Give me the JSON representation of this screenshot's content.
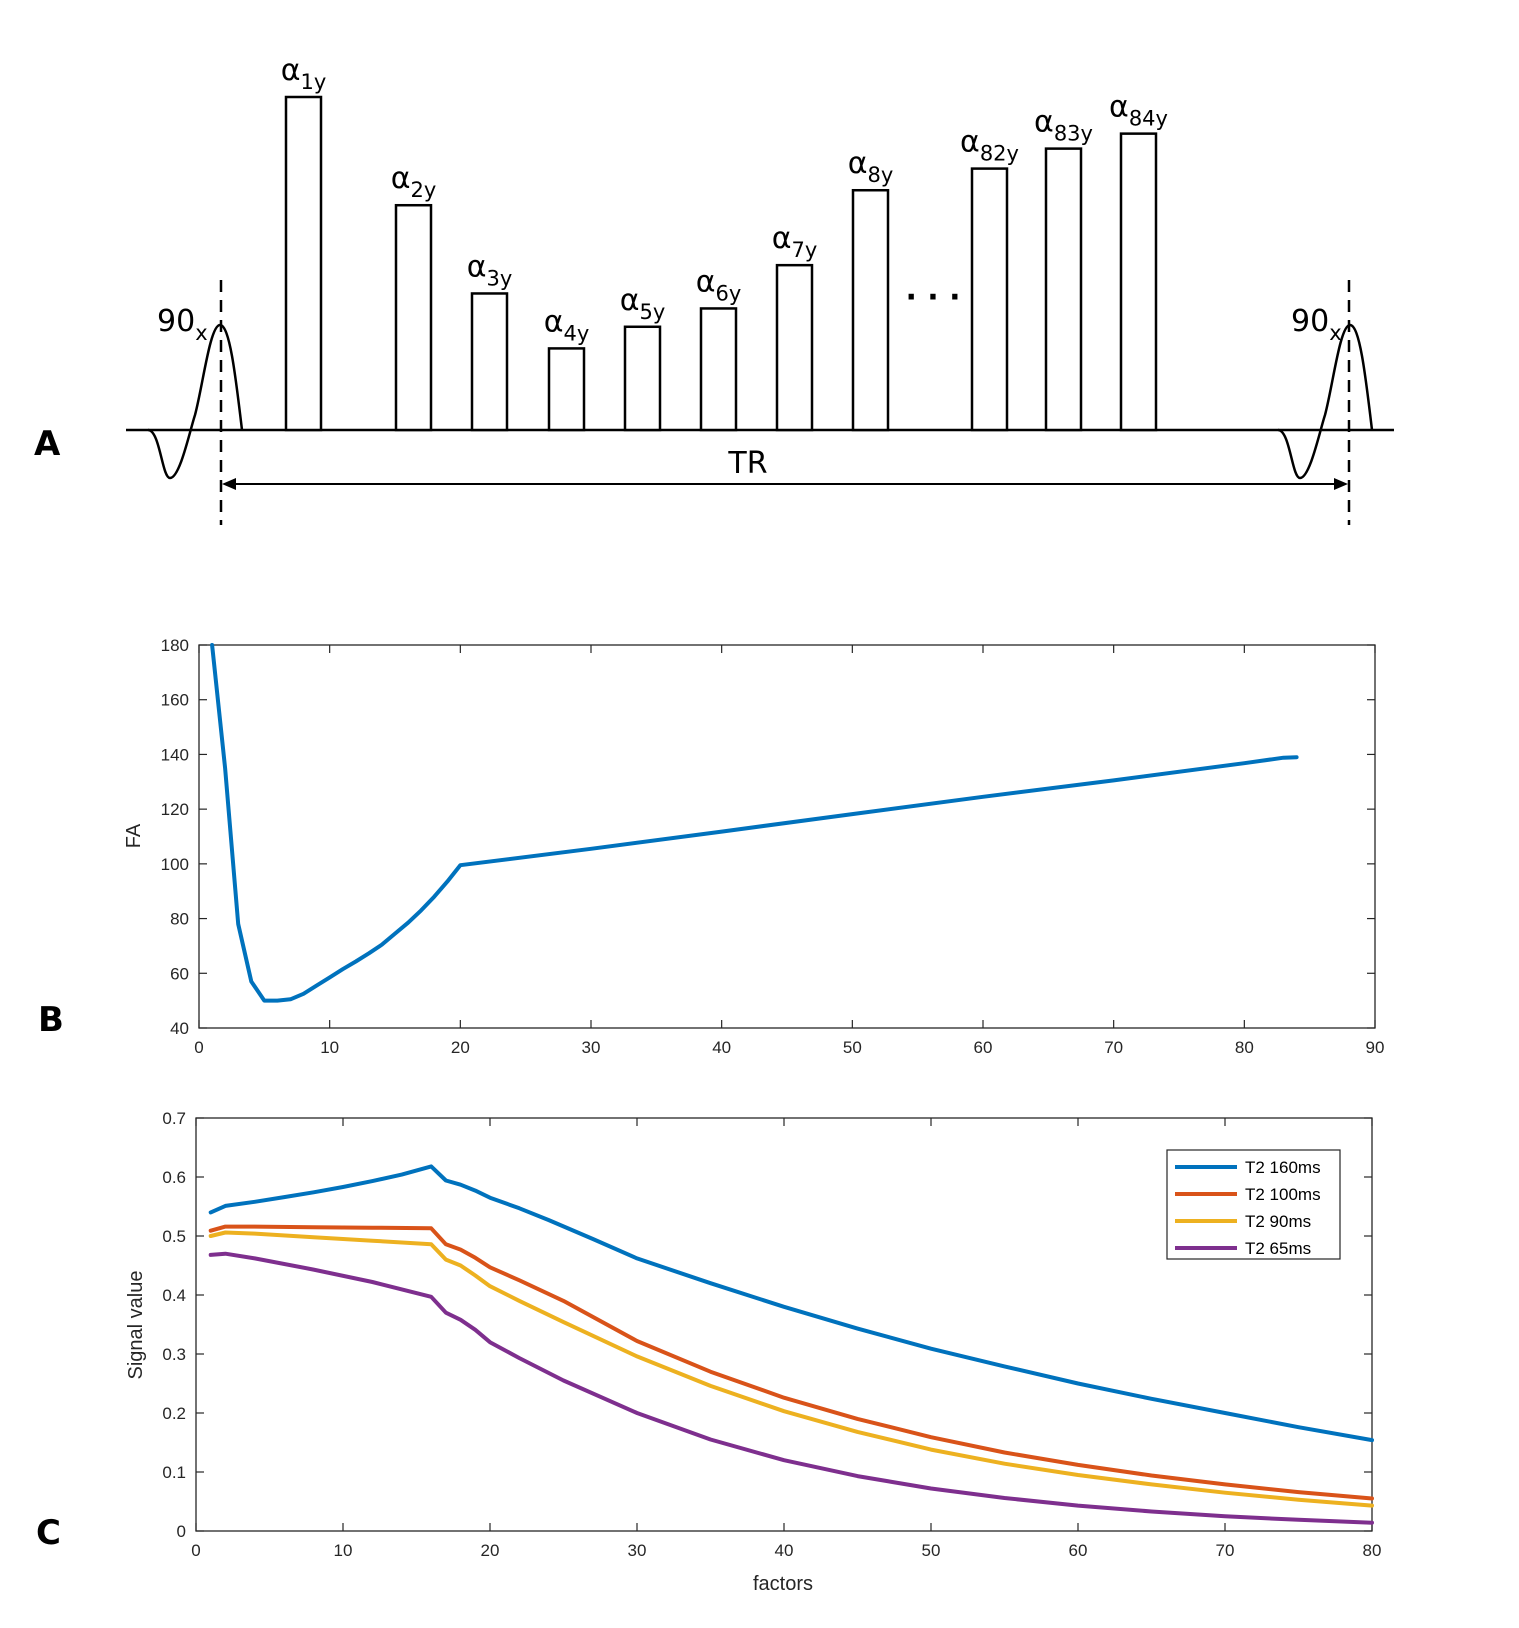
{
  "panel_labels": {
    "a": "A",
    "b": "B",
    "c": "C"
  },
  "panel_a": {
    "excitation_label": "90",
    "excitation_sub": "x",
    "tr_label": "TR",
    "ellipsis": "· · ·",
    "refocus_pulses": [
      {
        "base": "α",
        "sub": "1y",
        "rel_height": 1.0
      },
      {
        "base": "α",
        "sub": "2y",
        "rel_height": 0.675
      },
      {
        "base": "α",
        "sub": "3y",
        "rel_height": 0.41
      },
      {
        "base": "α",
        "sub": "4y",
        "rel_height": 0.245
      },
      {
        "base": "α",
        "sub": "5y",
        "rel_height": 0.31
      },
      {
        "base": "α",
        "sub": "6y",
        "rel_height": 0.365
      },
      {
        "base": "α",
        "sub": "7y",
        "rel_height": 0.495
      },
      {
        "base": "α",
        "sub": "8y",
        "rel_height": 0.72
      },
      {
        "base": "α",
        "sub": "82y",
        "rel_height": 0.785
      },
      {
        "base": "α",
        "sub": "83y",
        "rel_height": 0.845
      },
      {
        "base": "α",
        "sub": "84y",
        "rel_height": 0.89
      }
    ]
  },
  "chart_data": [
    {
      "type": "line",
      "title": "",
      "xlabel": "",
      "ylabel": "FA",
      "xlim": [
        0,
        90
      ],
      "ylim": [
        40,
        180
      ],
      "xticks": [
        0,
        10,
        20,
        30,
        40,
        50,
        60,
        70,
        80,
        90
      ],
      "yticks": [
        40,
        60,
        80,
        100,
        120,
        140,
        160,
        180
      ],
      "color": "#0072BD",
      "series": [
        {
          "x": [
            1,
            2,
            3,
            4,
            5,
            6,
            7,
            8,
            9,
            10,
            11,
            12,
            13,
            14,
            15,
            16,
            17,
            18,
            19,
            20,
            30,
            40,
            50,
            60,
            70,
            80,
            83,
            84
          ],
          "y": [
            180,
            135,
            78,
            57,
            50,
            50,
            50.5,
            52.5,
            55.5,
            58.5,
            61.5,
            64.3,
            67.3,
            70.5,
            74.5,
            78.5,
            83,
            88,
            93.5,
            99.5,
            105.5,
            111.8,
            118.2,
            124.5,
            130.5,
            136.8,
            138.8,
            139
          ]
        }
      ]
    },
    {
      "type": "line",
      "title": "",
      "xlabel": "factors",
      "ylabel": "Signal value",
      "xlim": [
        0,
        80
      ],
      "ylim": [
        0,
        0.7
      ],
      "xticks": [
        0,
        10,
        20,
        30,
        40,
        50,
        60,
        70,
        80
      ],
      "yticks": [
        0,
        0.1,
        0.2,
        0.3,
        0.4,
        0.5,
        0.6,
        0.7
      ],
      "legend_position": "top-right",
      "series": [
        {
          "name": "T2 160ms",
          "color": "#0072BD",
          "x": [
            1,
            2,
            4,
            6,
            8,
            10,
            12,
            14,
            16,
            17,
            18,
            19,
            20,
            22,
            24,
            27,
            30,
            35,
            40,
            45,
            50,
            55,
            60,
            65,
            70,
            75,
            80
          ],
          "y": [
            0.54,
            0.551,
            0.558,
            0.566,
            0.574,
            0.583,
            0.593,
            0.604,
            0.618,
            0.594,
            0.587,
            0.577,
            0.565,
            0.547,
            0.527,
            0.495,
            0.462,
            0.42,
            0.38,
            0.343,
            0.309,
            0.279,
            0.25,
            0.224,
            0.2,
            0.176,
            0.154
          ]
        },
        {
          "name": "T2 100ms",
          "color": "#D95319",
          "x": [
            1,
            2,
            4,
            8,
            12,
            16,
            17,
            18,
            19,
            20,
            22,
            25,
            30,
            35,
            40,
            45,
            50,
            55,
            60,
            65,
            70,
            75,
            80
          ],
          "y": [
            0.509,
            0.516,
            0.516,
            0.515,
            0.514,
            0.513,
            0.486,
            0.477,
            0.463,
            0.447,
            0.425,
            0.39,
            0.322,
            0.27,
            0.226,
            0.19,
            0.159,
            0.133,
            0.112,
            0.094,
            0.079,
            0.066,
            0.055
          ]
        },
        {
          "name": "T2 90ms",
          "color": "#EDB120",
          "x": [
            1,
            2,
            4,
            8,
            12,
            16,
            17,
            18,
            19,
            20,
            22,
            25,
            30,
            35,
            40,
            45,
            50,
            55,
            60,
            65,
            70,
            75,
            80
          ],
          "y": [
            0.5,
            0.506,
            0.504,
            0.498,
            0.492,
            0.486,
            0.46,
            0.45,
            0.433,
            0.415,
            0.39,
            0.354,
            0.296,
            0.246,
            0.203,
            0.168,
            0.138,
            0.114,
            0.095,
            0.079,
            0.065,
            0.053,
            0.043
          ]
        },
        {
          "name": "T2 65ms",
          "color": "#7E2F8E",
          "x": [
            1,
            2,
            4,
            8,
            12,
            16,
            17,
            18,
            19,
            20,
            22,
            25,
            30,
            35,
            40,
            45,
            50,
            55,
            60,
            65,
            70,
            75,
            80
          ],
          "y": [
            0.468,
            0.47,
            0.462,
            0.443,
            0.422,
            0.397,
            0.37,
            0.358,
            0.341,
            0.32,
            0.293,
            0.255,
            0.2,
            0.155,
            0.12,
            0.093,
            0.072,
            0.056,
            0.043,
            0.033,
            0.025,
            0.019,
            0.014
          ]
        }
      ]
    }
  ]
}
